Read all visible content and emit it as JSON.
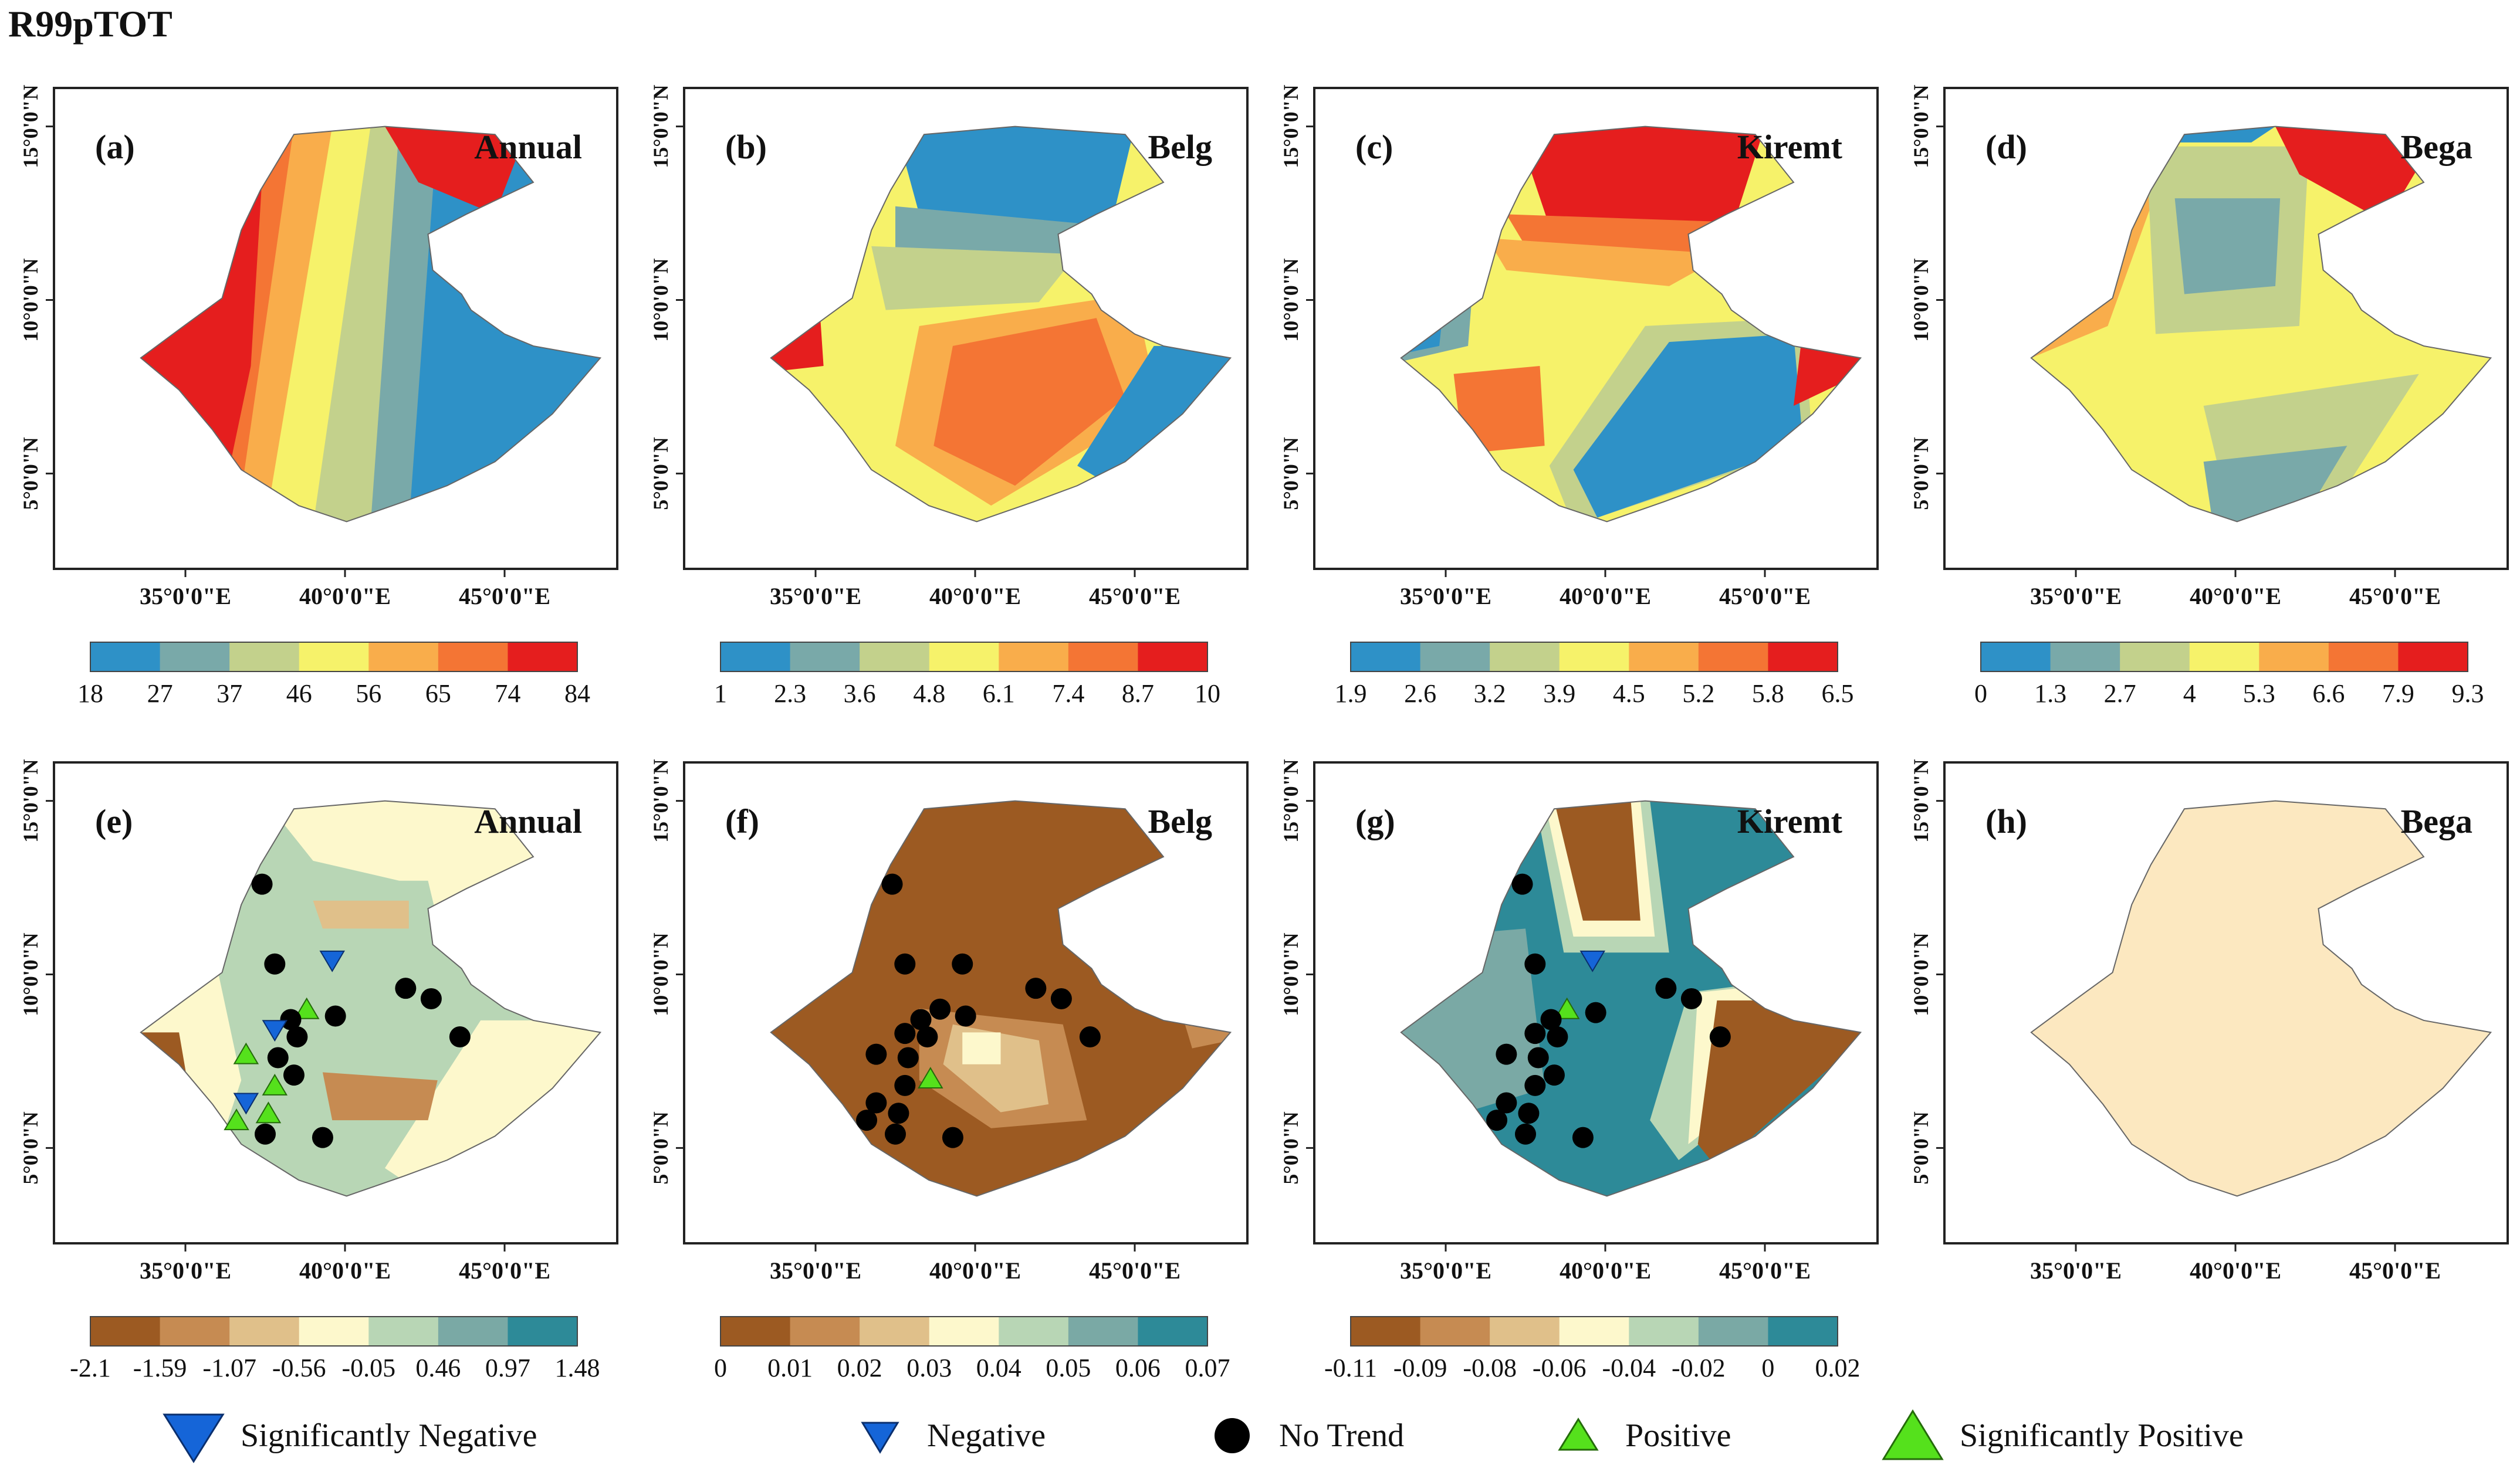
{
  "figure_title": "R99pTOT",
  "colors": {
    "magnitude": [
      "#2e91c7",
      "#79a9a9",
      "#c3d18c",
      "#f6f26a",
      "#f9ad4b",
      "#f47534",
      "#e51e1e"
    ],
    "trend": [
      "#9c5a22",
      "#c68b52",
      "#e0c08a",
      "#fdf8cc",
      "#b8d6b5",
      "#7aa9a5",
      "#2d8a98"
    ],
    "uniform": "#fce8c0",
    "sig_negative": "#1565d8",
    "no_trend": "#000000",
    "positive": "#55e11c"
  },
  "legend": {
    "items": [
      {
        "label": "Significantly Negative",
        "symbol": "down-triangle-large"
      },
      {
        "label": "Negative",
        "symbol": "down-triangle-small"
      },
      {
        "label": "No Trend",
        "symbol": "circle"
      },
      {
        "label": "Positive",
        "symbol": "up-triangle-small"
      },
      {
        "label": "Significantly Positive",
        "symbol": "up-triangle-large"
      }
    ]
  },
  "chart_data": [
    {
      "id": "a",
      "type": "heatmap",
      "panel_label": "(a)",
      "title": "Annual",
      "quantity": "R99pTOT magnitude",
      "xlabels": [
        "35°0'0\"E",
        "40°0'0\"E",
        "45°0'0\"E"
      ],
      "ylabels": [
        "15°0'0\"N",
        "10°0'0\"N",
        "5°0'0\"N"
      ],
      "colorbar": [
        "18",
        "27",
        "37",
        "46",
        "56",
        "65",
        "74",
        "84"
      ],
      "scheme": "magnitude"
    },
    {
      "id": "b",
      "type": "heatmap",
      "panel_label": "(b)",
      "title": "Belg",
      "quantity": "R99pTOT magnitude",
      "xlabels": [
        "35°0'0\"E",
        "40°0'0\"E",
        "45°0'0\"E"
      ],
      "ylabels": [
        "15°0'0\"N",
        "10°0'0\"N",
        "5°0'0\"N"
      ],
      "colorbar": [
        "1",
        "2.3",
        "3.6",
        "4.8",
        "6.1",
        "7.4",
        "8.7",
        "10"
      ],
      "scheme": "magnitude"
    },
    {
      "id": "c",
      "type": "heatmap",
      "panel_label": "(c)",
      "title": "Kiremt",
      "quantity": "R99pTOT magnitude",
      "xlabels": [
        "35°0'0\"E",
        "40°0'0\"E",
        "45°0'0\"E"
      ],
      "ylabels": [
        "15°0'0\"N",
        "10°0'0\"N",
        "5°0'0\"N"
      ],
      "colorbar": [
        "1.9",
        "2.6",
        "3.2",
        "3.9",
        "4.5",
        "5.2",
        "5.8",
        "6.5"
      ],
      "scheme": "magnitude"
    },
    {
      "id": "d",
      "type": "heatmap",
      "panel_label": "(d)",
      "title": "Bega",
      "quantity": "R99pTOT magnitude",
      "xlabels": [
        "35°0'0\"E",
        "40°0'0\"E",
        "45°0'0\"E"
      ],
      "ylabels": [
        "15°0'0\"N",
        "10°0'0\"N",
        "5°0'0\"N"
      ],
      "colorbar": [
        "0",
        "1.3",
        "2.7",
        "4",
        "5.3",
        "6.6",
        "7.9",
        "9.3"
      ],
      "scheme": "magnitude"
    },
    {
      "id": "e",
      "type": "heatmap",
      "panel_label": "(e)",
      "title": "Annual",
      "quantity": "R99pTOT trend",
      "xlabels": [
        "35°0'0\"E",
        "40°0'0\"E",
        "45°0'0\"E"
      ],
      "ylabels": [
        "15°0'0\"N",
        "10°0'0\"N",
        "5°0'0\"N"
      ],
      "colorbar": [
        "-2.1",
        "-1.59",
        "-1.07",
        "-0.56",
        "-0.05",
        "0.46",
        "0.97",
        "1.48"
      ],
      "scheme": "trend",
      "stations": [
        {
          "lon": 37.4,
          "lat": 12.6,
          "trend": "no_trend"
        },
        {
          "lon": 37.8,
          "lat": 10.3,
          "trend": "no_trend"
        },
        {
          "lon": 39.6,
          "lat": 10.4,
          "trend": "negative"
        },
        {
          "lon": 41.9,
          "lat": 9.6,
          "trend": "no_trend"
        },
        {
          "lon": 42.7,
          "lat": 9.3,
          "trend": "no_trend"
        },
        {
          "lon": 38.8,
          "lat": 9.0,
          "trend": "positive"
        },
        {
          "lon": 38.3,
          "lat": 8.7,
          "trend": "no_trend"
        },
        {
          "lon": 37.8,
          "lat": 8.4,
          "trend": "negative"
        },
        {
          "lon": 39.7,
          "lat": 8.8,
          "trend": "no_trend"
        },
        {
          "lon": 38.5,
          "lat": 8.2,
          "trend": "no_trend"
        },
        {
          "lon": 43.6,
          "lat": 8.2,
          "trend": "no_trend"
        },
        {
          "lon": 36.9,
          "lat": 7.7,
          "trend": "positive"
        },
        {
          "lon": 37.9,
          "lat": 7.6,
          "trend": "no_trend"
        },
        {
          "lon": 38.4,
          "lat": 7.1,
          "trend": "no_trend"
        },
        {
          "lon": 37.8,
          "lat": 6.8,
          "trend": "positive"
        },
        {
          "lon": 36.9,
          "lat": 6.3,
          "trend": "negative"
        },
        {
          "lon": 37.6,
          "lat": 6.0,
          "trend": "positive"
        },
        {
          "lon": 36.6,
          "lat": 5.8,
          "trend": "positive"
        },
        {
          "lon": 37.5,
          "lat": 5.4,
          "trend": "no_trend"
        },
        {
          "lon": 39.3,
          "lat": 5.3,
          "trend": "no_trend"
        }
      ]
    },
    {
      "id": "f",
      "type": "heatmap",
      "panel_label": "(f)",
      "title": "Belg",
      "quantity": "R99pTOT trend",
      "xlabels": [
        "35°0'0\"E",
        "40°0'0\"E",
        "45°0'0\"E"
      ],
      "ylabels": [
        "15°0'0\"N",
        "10°0'0\"N",
        "5°0'0\"N"
      ],
      "colorbar": [
        "0",
        "0.01",
        "0.02",
        "0.03",
        "0.04",
        "0.05",
        "0.06",
        "0.07"
      ],
      "scheme": "trend",
      "stations": [
        {
          "lon": 37.4,
          "lat": 12.6,
          "trend": "no_trend"
        },
        {
          "lon": 37.8,
          "lat": 10.3,
          "trend": "no_trend"
        },
        {
          "lon": 39.6,
          "lat": 10.3,
          "trend": "no_trend"
        },
        {
          "lon": 41.9,
          "lat": 9.6,
          "trend": "no_trend"
        },
        {
          "lon": 42.7,
          "lat": 9.3,
          "trend": "no_trend"
        },
        {
          "lon": 38.9,
          "lat": 9.0,
          "trend": "no_trend"
        },
        {
          "lon": 39.7,
          "lat": 8.8,
          "trend": "no_trend"
        },
        {
          "lon": 38.3,
          "lat": 8.7,
          "trend": "no_trend"
        },
        {
          "lon": 37.8,
          "lat": 8.3,
          "trend": "no_trend"
        },
        {
          "lon": 38.5,
          "lat": 8.2,
          "trend": "no_trend"
        },
        {
          "lon": 43.6,
          "lat": 8.2,
          "trend": "no_trend"
        },
        {
          "lon": 36.9,
          "lat": 7.7,
          "trend": "no_trend"
        },
        {
          "lon": 37.9,
          "lat": 7.6,
          "trend": "no_trend"
        },
        {
          "lon": 38.6,
          "lat": 7.0,
          "trend": "positive"
        },
        {
          "lon": 37.8,
          "lat": 6.8,
          "trend": "no_trend"
        },
        {
          "lon": 36.9,
          "lat": 6.3,
          "trend": "no_trend"
        },
        {
          "lon": 37.6,
          "lat": 6.0,
          "trend": "no_trend"
        },
        {
          "lon": 36.6,
          "lat": 5.8,
          "trend": "no_trend"
        },
        {
          "lon": 37.5,
          "lat": 5.4,
          "trend": "no_trend"
        },
        {
          "lon": 39.3,
          "lat": 5.3,
          "trend": "no_trend"
        }
      ]
    },
    {
      "id": "g",
      "type": "heatmap",
      "panel_label": "(g)",
      "title": "Kiremt",
      "quantity": "R99pTOT trend",
      "xlabels": [
        "35°0'0\"E",
        "40°0'0\"E",
        "45°0'0\"E"
      ],
      "ylabels": [
        "15°0'0\"N",
        "10°0'0\"N",
        "5°0'0\"N"
      ],
      "colorbar": [
        "-0.11",
        "-0.09",
        "-0.08",
        "-0.06",
        "-0.04",
        "-0.02",
        "0",
        "0.02"
      ],
      "scheme": "trend",
      "stations": [
        {
          "lon": 37.4,
          "lat": 12.6,
          "trend": "no_trend"
        },
        {
          "lon": 37.8,
          "lat": 10.3,
          "trend": "no_trend"
        },
        {
          "lon": 39.6,
          "lat": 10.4,
          "trend": "negative"
        },
        {
          "lon": 41.9,
          "lat": 9.6,
          "trend": "no_trend"
        },
        {
          "lon": 42.7,
          "lat": 9.3,
          "trend": "no_trend"
        },
        {
          "lon": 38.8,
          "lat": 9.0,
          "trend": "positive"
        },
        {
          "lon": 39.7,
          "lat": 8.9,
          "trend": "no_trend"
        },
        {
          "lon": 38.3,
          "lat": 8.7,
          "trend": "no_trend"
        },
        {
          "lon": 37.8,
          "lat": 8.3,
          "trend": "no_trend"
        },
        {
          "lon": 38.5,
          "lat": 8.2,
          "trend": "no_trend"
        },
        {
          "lon": 43.6,
          "lat": 8.2,
          "trend": "no_trend"
        },
        {
          "lon": 36.9,
          "lat": 7.7,
          "trend": "no_trend"
        },
        {
          "lon": 37.9,
          "lat": 7.6,
          "trend": "no_trend"
        },
        {
          "lon": 38.4,
          "lat": 7.1,
          "trend": "no_trend"
        },
        {
          "lon": 37.8,
          "lat": 6.8,
          "trend": "no_trend"
        },
        {
          "lon": 36.9,
          "lat": 6.3,
          "trend": "no_trend"
        },
        {
          "lon": 37.6,
          "lat": 6.0,
          "trend": "no_trend"
        },
        {
          "lon": 36.6,
          "lat": 5.8,
          "trend": "no_trend"
        },
        {
          "lon": 37.5,
          "lat": 5.4,
          "trend": "no_trend"
        },
        {
          "lon": 39.3,
          "lat": 5.3,
          "trend": "no_trend"
        }
      ]
    },
    {
      "id": "h",
      "type": "heatmap",
      "panel_label": "(h)",
      "title": "Bega",
      "quantity": "R99pTOT trend",
      "xlabels": [
        "35°0'0\"E",
        "40°0'0\"E",
        "45°0'0\"E"
      ],
      "ylabels": [
        "15°0'0\"N",
        "10°0'0\"N",
        "5°0'0\"N"
      ],
      "colorbar": [],
      "scheme": "uniform",
      "stations": []
    }
  ]
}
